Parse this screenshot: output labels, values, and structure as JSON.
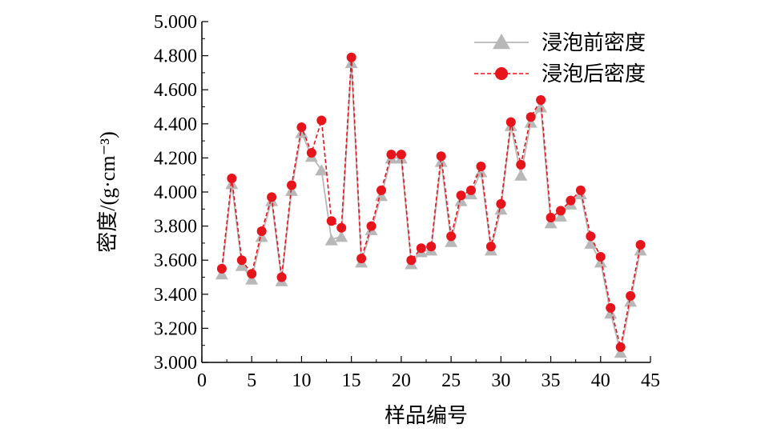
{
  "chart_data": {
    "type": "line",
    "xlabel": "样品编号",
    "ylabel": "密度/(g·cm⁻³)",
    "xlim": [
      0,
      45
    ],
    "ylim": [
      3.0,
      5.0
    ],
    "x_ticks": [
      "0",
      "5",
      "10",
      "15",
      "20",
      "25",
      "30",
      "35",
      "40",
      "45"
    ],
    "y_ticks": [
      "3.000",
      "3.200",
      "3.400",
      "3.600",
      "3.800",
      "4.000",
      "4.200",
      "4.400",
      "4.600",
      "4.800",
      "5.000"
    ],
    "legend_position": "top-right",
    "x": [
      2,
      3,
      4,
      5,
      6,
      7,
      8,
      9,
      10,
      11,
      12,
      13,
      14,
      15,
      16,
      17,
      18,
      19,
      20,
      21,
      22,
      23,
      24,
      25,
      26,
      27,
      28,
      29,
      30,
      31,
      32,
      33,
      34,
      35,
      36,
      37,
      38,
      39,
      40,
      41,
      42,
      43,
      44
    ],
    "series": [
      {
        "name": "浸泡前密度",
        "color": "#b8b8b8",
        "marker": "triangle",
        "line": "solid",
        "values": [
          3.52,
          4.05,
          3.57,
          3.49,
          3.74,
          3.95,
          3.48,
          4.01,
          4.35,
          4.21,
          4.13,
          3.72,
          3.74,
          4.76,
          3.59,
          3.78,
          3.98,
          4.2,
          4.2,
          3.58,
          3.65,
          3.66,
          4.18,
          3.71,
          3.95,
          3.99,
          4.12,
          3.66,
          3.9,
          4.39,
          4.1,
          4.41,
          4.5,
          3.82,
          3.86,
          3.93,
          3.99,
          3.7,
          3.59,
          3.29,
          3.06,
          3.36,
          3.66
        ]
      },
      {
        "name": "浸泡后密度",
        "color": "#e8141b",
        "marker": "circle",
        "line": "dashed",
        "values": [
          3.55,
          4.08,
          3.6,
          3.52,
          3.77,
          3.97,
          3.5,
          4.04,
          4.38,
          4.23,
          4.42,
          3.83,
          3.79,
          4.79,
          3.61,
          3.8,
          4.01,
          4.22,
          4.22,
          3.6,
          3.67,
          3.68,
          4.21,
          3.74,
          3.98,
          4.01,
          4.15,
          3.68,
          3.93,
          4.41,
          4.16,
          4.44,
          4.54,
          3.85,
          3.89,
          3.95,
          4.01,
          3.74,
          3.62,
          3.32,
          3.09,
          3.39,
          3.69
        ]
      }
    ]
  }
}
